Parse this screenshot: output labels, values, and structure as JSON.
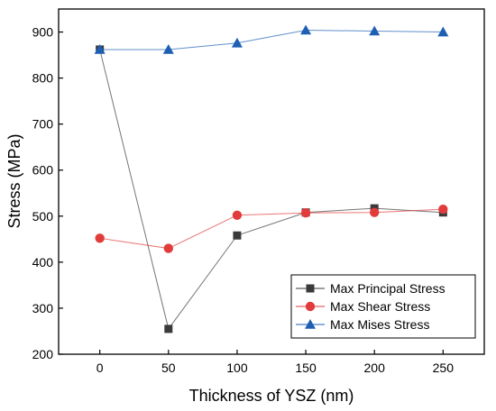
{
  "chart_data": {
    "type": "line",
    "title": "",
    "xlabel": "Thickness of YSZ (nm)",
    "ylabel": "Stress (MPa)",
    "xlim": [
      -30,
      280
    ],
    "ylim": [
      200,
      950
    ],
    "x": [
      0,
      50,
      100,
      150,
      200,
      250
    ],
    "x_ticks": [
      0,
      50,
      100,
      150,
      200,
      250
    ],
    "y_ticks": [
      200,
      300,
      400,
      500,
      600,
      700,
      800,
      900
    ],
    "grid": false,
    "legend_position": "bottom-right",
    "series": [
      {
        "name": "Max Principal Stress",
        "marker": "square",
        "color": "#3a3a3a",
        "values": [
          862,
          255,
          458,
          508,
          517,
          508
        ]
      },
      {
        "name": "Max Shear Stress",
        "marker": "circle",
        "color": "#e23b3b",
        "values": [
          452,
          430,
          502,
          507,
          508,
          515
        ]
      },
      {
        "name": "Max Mises Stress",
        "marker": "triangle",
        "color": "#1e5fb4",
        "values": [
          862,
          862,
          876,
          904,
          902,
          900
        ]
      }
    ]
  }
}
